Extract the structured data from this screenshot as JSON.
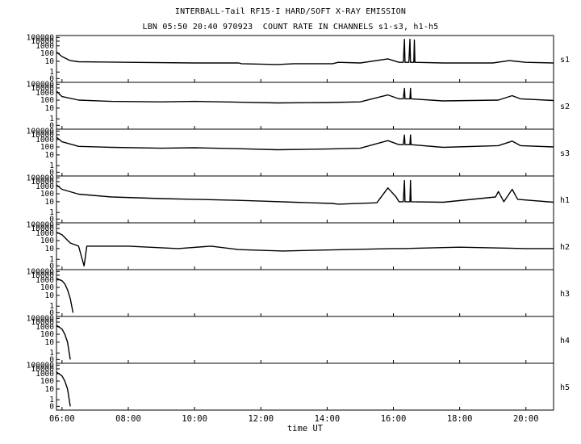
{
  "title": "INTERBALL-Tail RF15-I HARD/SOFT X-RAY EMISSION",
  "subtitle": "LBN 05:50 20:40 970923  COUNT RATE IN CHANNELS s1-s3, h1-h5",
  "chart_data": {
    "type": "line",
    "title": "INTERBALL-Tail RF15-I HARD/SOFT X-RAY EMISSION",
    "subtitle": "LBN 05:50 20:40 970923  COUNT RATE IN CHANNELS s1-s3, h1-h5",
    "xlabel": "time UT",
    "x_range": [
      "05:50",
      "20:50"
    ],
    "x_ticks": [
      "06:00",
      "08:00",
      "10:00",
      "12:00",
      "14:00",
      "16:00",
      "18:00",
      "20:00"
    ],
    "y_scale": "log",
    "y_ticks": [
      "100000",
      "10000",
      "1000",
      "100",
      "10",
      "1",
      "0"
    ],
    "grid": false,
    "panels": [
      {
        "name": "s1",
        "points": [
          [
            "05:50",
            150
          ],
          [
            "06:00",
            40
          ],
          [
            "06:15",
            12
          ],
          [
            "06:30",
            9
          ],
          [
            "08:00",
            8
          ],
          [
            "10:00",
            7
          ],
          [
            "11:20",
            7
          ],
          [
            "11:25",
            6
          ],
          [
            "12:30",
            5
          ],
          [
            "13:00",
            6
          ],
          [
            "14:10",
            6
          ],
          [
            "14:20",
            8
          ],
          [
            "15:00",
            7
          ],
          [
            "15:50",
            20
          ],
          [
            "16:10",
            8
          ],
          [
            "16:18",
            8
          ],
          [
            "16:20",
            30000
          ],
          [
            "16:21",
            8
          ],
          [
            "16:28",
            8
          ],
          [
            "16:30",
            30000
          ],
          [
            "16:31",
            8
          ],
          [
            "16:37",
            8
          ],
          [
            "16:38",
            20000
          ],
          [
            "16:39",
            8
          ],
          [
            "17:30",
            7
          ],
          [
            "19:00",
            7
          ],
          [
            "19:30",
            12
          ],
          [
            "20:00",
            8
          ],
          [
            "20:50",
            7
          ]
        ]
      },
      {
        "name": "s2",
        "points": [
          [
            "05:50",
            2000
          ],
          [
            "06:00",
            300
          ],
          [
            "06:30",
            100
          ],
          [
            "07:30",
            70
          ],
          [
            "09:00",
            60
          ],
          [
            "10:00",
            70
          ],
          [
            "11:20",
            55
          ],
          [
            "12:30",
            45
          ],
          [
            "14:00",
            50
          ],
          [
            "15:00",
            60
          ],
          [
            "15:50",
            500
          ],
          [
            "16:10",
            150
          ],
          [
            "16:18",
            150
          ],
          [
            "16:20",
            8000
          ],
          [
            "16:21",
            150
          ],
          [
            "16:30",
            150
          ],
          [
            "16:31",
            8000
          ],
          [
            "16:32",
            150
          ],
          [
            "17:30",
            80
          ],
          [
            "19:10",
            100
          ],
          [
            "19:35",
            400
          ],
          [
            "19:50",
            150
          ],
          [
            "20:50",
            90
          ]
        ]
      },
      {
        "name": "s3",
        "points": [
          [
            "05:50",
            3000
          ],
          [
            "06:00",
            500
          ],
          [
            "06:30",
            120
          ],
          [
            "07:30",
            90
          ],
          [
            "09:00",
            70
          ],
          [
            "10:00",
            80
          ],
          [
            "11:20",
            60
          ],
          [
            "12:30",
            45
          ],
          [
            "14:00",
            55
          ],
          [
            "15:00",
            70
          ],
          [
            "15:50",
            700
          ],
          [
            "16:10",
            200
          ],
          [
            "16:18",
            200
          ],
          [
            "16:20",
            9000
          ],
          [
            "16:21",
            200
          ],
          [
            "16:30",
            200
          ],
          [
            "16:31",
            9000
          ],
          [
            "16:32",
            200
          ],
          [
            "17:30",
            90
          ],
          [
            "19:10",
            150
          ],
          [
            "19:35",
            600
          ],
          [
            "19:50",
            150
          ],
          [
            "20:50",
            100
          ]
        ]
      },
      {
        "name": "h1",
        "points": [
          [
            "05:50",
            2000
          ],
          [
            "06:00",
            400
          ],
          [
            "06:30",
            90
          ],
          [
            "07:30",
            40
          ],
          [
            "09:00",
            25
          ],
          [
            "10:00",
            20
          ],
          [
            "11:20",
            15
          ],
          [
            "12:00",
            12
          ],
          [
            "13:00",
            9
          ],
          [
            "14:10",
            7
          ],
          [
            "14:20",
            6
          ],
          [
            "15:30",
            8
          ],
          [
            "15:50",
            600
          ],
          [
            "16:05",
            40
          ],
          [
            "16:10",
            10
          ],
          [
            "16:18",
            10
          ],
          [
            "16:20",
            20000
          ],
          [
            "16:21",
            10
          ],
          [
            "16:30",
            10
          ],
          [
            "16:31",
            20000
          ],
          [
            "16:32",
            10
          ],
          [
            "17:30",
            9
          ],
          [
            "19:05",
            40
          ],
          [
            "19:10",
            200
          ],
          [
            "19:20",
            10
          ],
          [
            "19:35",
            400
          ],
          [
            "19:45",
            20
          ],
          [
            "20:50",
            9
          ]
        ]
      },
      {
        "name": "h2",
        "points": [
          [
            "05:50",
            1500
          ],
          [
            "06:00",
            600
          ],
          [
            "06:15",
            50
          ],
          [
            "06:30",
            20
          ],
          [
            "06:40",
            0
          ],
          [
            "06:45",
            20
          ],
          [
            "08:00",
            20
          ],
          [
            "09:30",
            10
          ],
          [
            "10:30",
            20
          ],
          [
            "11:20",
            8
          ],
          [
            "12:40",
            6
          ],
          [
            "16:00",
            10
          ],
          [
            "16:20",
            10
          ],
          [
            "18:00",
            15
          ],
          [
            "20:00",
            10
          ],
          [
            "20:50",
            10
          ]
        ]
      },
      {
        "name": "h3",
        "points": [
          [
            "05:50",
            2000
          ],
          [
            "06:00",
            800
          ],
          [
            "06:05",
            300
          ],
          [
            "06:10",
            50
          ],
          [
            "06:15",
            5
          ],
          [
            "06:20",
            0
          ]
        ]
      },
      {
        "name": "h4",
        "points": [
          [
            "05:50",
            2000
          ],
          [
            "06:00",
            500
          ],
          [
            "06:05",
            100
          ],
          [
            "06:10",
            10
          ],
          [
            "06:15",
            0
          ]
        ]
      },
      {
        "name": "h5",
        "points": [
          [
            "05:50",
            2000
          ],
          [
            "06:00",
            500
          ],
          [
            "06:05",
            100
          ],
          [
            "06:10",
            10
          ],
          [
            "06:15",
            0
          ]
        ]
      }
    ]
  }
}
